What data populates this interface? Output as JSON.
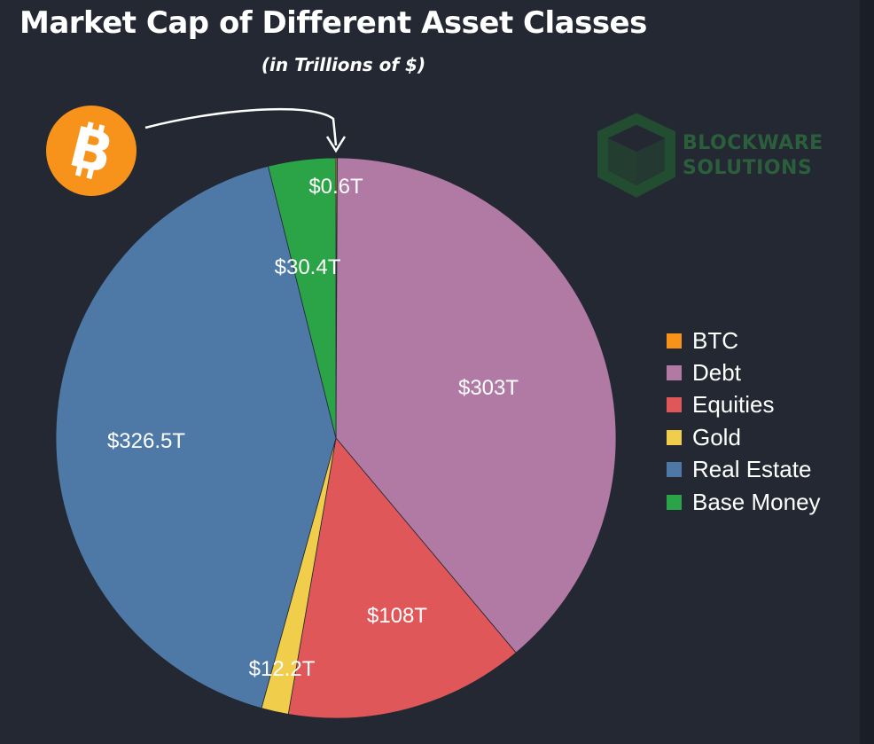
{
  "title": "Market Cap of Different Asset Classes",
  "subtitle": "(in Trillions of $)",
  "logo": {
    "line1": "BLOCKWARE",
    "line2": "SOLUTIONS"
  },
  "badge_icon": "bitcoin-icon",
  "chart_data": {
    "type": "pie",
    "title": "Market Cap of Different Asset Classes",
    "subtitle": "(in Trillions of $)",
    "unit": "Trillions of $",
    "legend_position": "right",
    "slices": [
      {
        "name": "BTC",
        "value": 0.6,
        "label": "$0.6T",
        "color": "#f7931a"
      },
      {
        "name": "Debt",
        "value": 303,
        "label": "$303T",
        "color": "#b07aa5"
      },
      {
        "name": "Equities",
        "value": 108,
        "label": "$108T",
        "color": "#e05759"
      },
      {
        "name": "Gold",
        "value": 12.2,
        "label": "$12.2T",
        "color": "#f0cd4b"
      },
      {
        "name": "Real Estate",
        "value": 326.5,
        "label": "$326.5T",
        "color": "#4e79a7"
      },
      {
        "name": "Base Money",
        "value": 30.4,
        "label": "$30.4T",
        "color": "#2aa447"
      }
    ]
  }
}
